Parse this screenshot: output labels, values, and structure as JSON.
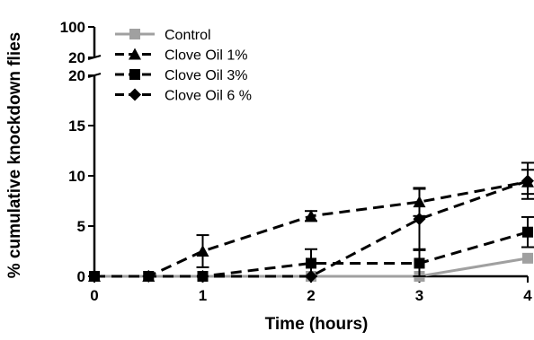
{
  "chart_data": {
    "type": "line",
    "xlabel": "Time (hours)",
    "ylabel": "% cumulative knockdown flies",
    "x_ticks": [
      "0",
      "1",
      "2",
      "3",
      "4"
    ],
    "y_ticks_lower": [
      "0",
      "5",
      "10",
      "15",
      "20"
    ],
    "y_ticks_upper": [
      "20",
      "100"
    ],
    "xlim": [
      0,
      4
    ],
    "ylim_lower": [
      0,
      20
    ],
    "ylim_upper": [
      20,
      100
    ],
    "axis_break": true,
    "grid": false,
    "legend_position": "top-left",
    "series": [
      {
        "name": "Control",
        "color": "#a0a0a0",
        "marker": "square",
        "line": "solid",
        "x": [
          0,
          0.5,
          1,
          2,
          3,
          4
        ],
        "y": [
          0,
          0,
          0,
          0,
          0,
          1.8
        ],
        "err": [
          0,
          0,
          0,
          0,
          0,
          0
        ]
      },
      {
        "name": "Clove Oil 1%",
        "color": "#000000",
        "marker": "triangle",
        "line": "dashed",
        "x": [
          0,
          0.5,
          1,
          2,
          3,
          4
        ],
        "y": [
          0,
          0,
          2.5,
          6.0,
          7.4,
          9.4
        ],
        "err": [
          0,
          0,
          1.6,
          0.5,
          1.4,
          1.2
        ]
      },
      {
        "name": "Clove Oil 3%",
        "color": "#000000",
        "marker": "square",
        "line": "dashed",
        "x": [
          0,
          0.5,
          1,
          2,
          3,
          4
        ],
        "y": [
          0,
          0,
          0,
          1.3,
          1.3,
          4.4
        ],
        "err": [
          0,
          0,
          0,
          1.4,
          1.3,
          1.5
        ]
      },
      {
        "name": "Clove Oil 6 %",
        "color": "#000000",
        "marker": "diamond",
        "line": "dashed",
        "x": [
          0,
          0.5,
          1,
          2,
          3,
          4
        ],
        "y": [
          0,
          0,
          0,
          0,
          5.7,
          9.5
        ],
        "err": [
          0,
          0,
          0,
          0,
          3.0,
          1.8
        ]
      }
    ]
  }
}
